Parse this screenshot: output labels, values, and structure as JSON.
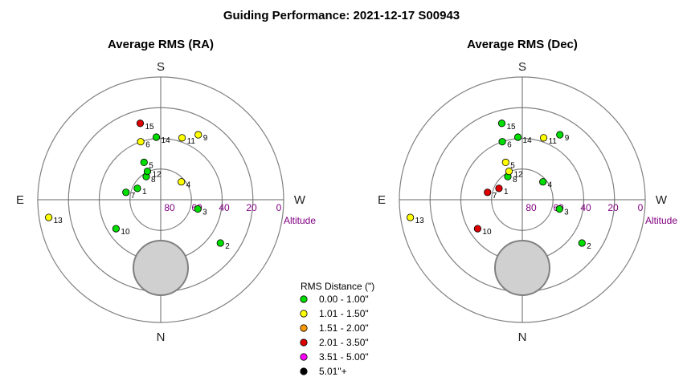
{
  "title": "Guiding Performance: 2021-12-17 S00943",
  "colors": {
    "ring": "#808080",
    "axis": "#666666",
    "moon_fill": "#d0d0d0",
    "moon_stroke": "#808080",
    "altitude_label": "#800080"
  },
  "cardinals": {
    "top": "S",
    "bottom": "N",
    "left": "E",
    "right": "W"
  },
  "altitude_name": "Altitude",
  "altitude_ticks": [
    "80",
    "60",
    "40",
    "20",
    "0"
  ],
  "legend": {
    "title": "RMS Distance (\")",
    "items": [
      {
        "label": "0.00 - 1.00\"",
        "color": "#00dd00"
      },
      {
        "label": "1.01 - 1.50\"",
        "color": "#ffff00"
      },
      {
        "label": "1.51 - 2.00\"",
        "color": "#ff9900"
      },
      {
        "label": "2.01 - 3.50\"",
        "color": "#dd0000"
      },
      {
        "label": "3.51 - 5.00\"",
        "color": "#ff00ff"
      },
      {
        "label": "5.01\"+",
        "color": "#000000"
      }
    ]
  },
  "chart_data": [
    {
      "type": "scatter",
      "polar": true,
      "title": "Average RMS (RA)",
      "rlabel": "Altitude",
      "r_ticks": [
        80,
        60,
        40,
        20,
        0
      ],
      "moon": {
        "altitude": 40,
        "azimuth": 0,
        "radius_deg": 20
      },
      "points": [
        {
          "id": "1",
          "altitude": 71,
          "azimuth": 116,
          "category": 0
        },
        {
          "id": "2",
          "altitude": 36,
          "azimuth": 306,
          "category": 0
        },
        {
          "id": "3",
          "altitude": 62,
          "azimuth": 284,
          "category": 0
        },
        {
          "id": "4",
          "altitude": 70,
          "azimuth": 229,
          "category": 1
        },
        {
          "id": "5",
          "altitude": 60,
          "azimuth": 156,
          "category": 0
        },
        {
          "id": "6",
          "altitude": 45,
          "azimuth": 161,
          "category": 1
        },
        {
          "id": "7",
          "altitude": 64,
          "azimuth": 102,
          "category": 0
        },
        {
          "id": "8",
          "altitude": 70,
          "azimuth": 148,
          "category": 0
        },
        {
          "id": "9",
          "altitude": 35,
          "azimuth": 210,
          "category": 1
        },
        {
          "id": "10",
          "altitude": 51,
          "azimuth": 57,
          "category": 0
        },
        {
          "id": "11",
          "altitude": 42,
          "azimuth": 199,
          "category": 1
        },
        {
          "id": "12",
          "altitude": 67,
          "azimuth": 155,
          "category": 0
        },
        {
          "id": "13",
          "altitude": 7,
          "azimuth": 81,
          "category": 1
        },
        {
          "id": "14",
          "altitude": 44,
          "azimuth": 176,
          "category": 0
        },
        {
          "id": "15",
          "altitude": 32,
          "azimuth": 165,
          "category": 3
        }
      ]
    },
    {
      "type": "scatter",
      "polar": true,
      "title": "Average RMS (Dec)",
      "rlabel": "Altitude",
      "r_ticks": [
        80,
        60,
        40,
        20,
        0
      ],
      "moon": {
        "altitude": 40,
        "azimuth": 0,
        "radius_deg": 20
      },
      "points": [
        {
          "id": "1",
          "altitude": 71,
          "azimuth": 116,
          "category": 3
        },
        {
          "id": "2",
          "altitude": 36,
          "azimuth": 306,
          "category": 0
        },
        {
          "id": "3",
          "altitude": 62,
          "azimuth": 284,
          "category": 0
        },
        {
          "id": "4",
          "altitude": 70,
          "azimuth": 229,
          "category": 0
        },
        {
          "id": "5",
          "altitude": 60,
          "azimuth": 156,
          "category": 1
        },
        {
          "id": "6",
          "altitude": 45,
          "azimuth": 161,
          "category": 0
        },
        {
          "id": "7",
          "altitude": 64,
          "azimuth": 102,
          "category": 3
        },
        {
          "id": "8",
          "altitude": 70,
          "azimuth": 148,
          "category": 0
        },
        {
          "id": "9",
          "altitude": 35,
          "azimuth": 210,
          "category": 0
        },
        {
          "id": "10",
          "altitude": 51,
          "azimuth": 57,
          "category": 3
        },
        {
          "id": "11",
          "altitude": 42,
          "azimuth": 199,
          "category": 1
        },
        {
          "id": "12",
          "altitude": 67,
          "azimuth": 155,
          "category": 1
        },
        {
          "id": "13",
          "altitude": 7,
          "azimuth": 81,
          "category": 1
        },
        {
          "id": "14",
          "altitude": 44,
          "azimuth": 176,
          "category": 0
        },
        {
          "id": "15",
          "altitude": 32,
          "azimuth": 165,
          "category": 0
        }
      ]
    }
  ]
}
